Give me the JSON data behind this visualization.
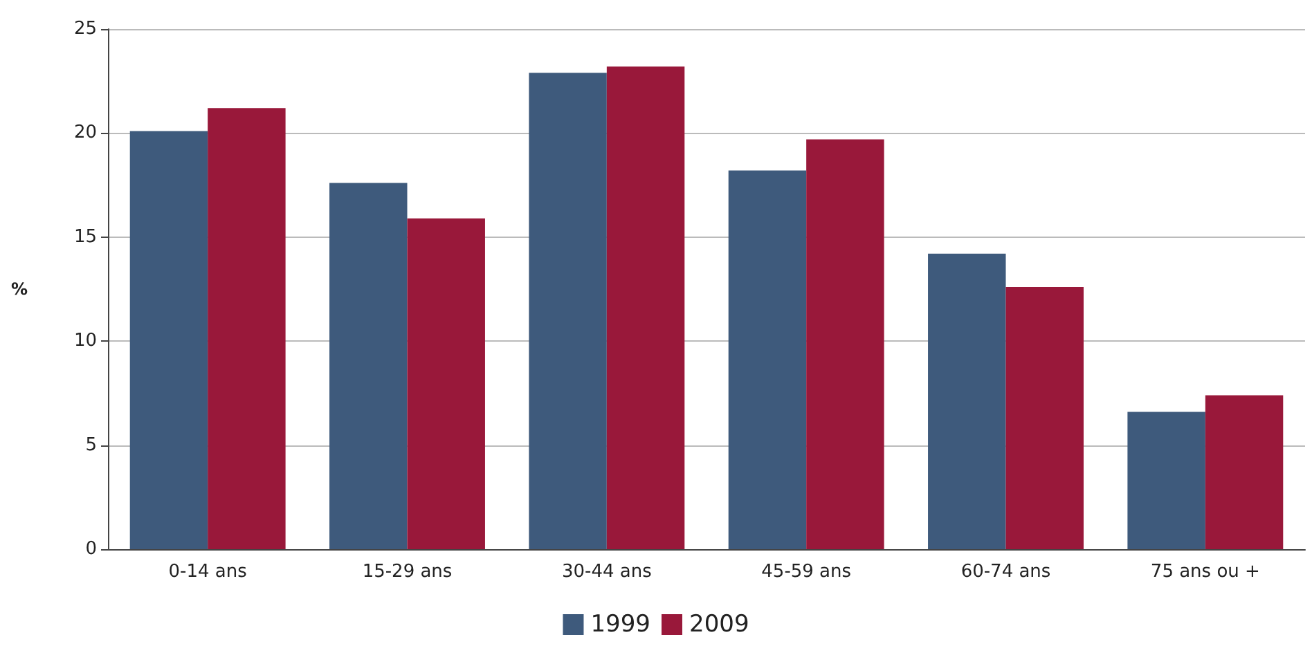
{
  "chart_data": {
    "type": "bar",
    "ylabel": "%",
    "categories": [
      "0-14 ans",
      "15-29 ans",
      "30-44 ans",
      "45-59 ans",
      "60-74 ans",
      "75 ans ou +"
    ],
    "series": [
      {
        "name": "1999",
        "color": "#3e5a7c",
        "values": [
          20.1,
          17.6,
          22.9,
          18.2,
          14.2,
          6.6
        ]
      },
      {
        "name": "2009",
        "color": "#99183a",
        "values": [
          21.2,
          15.9,
          23.2,
          19.7,
          12.6,
          7.4
        ]
      }
    ],
    "ylim": [
      0,
      25
    ],
    "yticks": [
      0,
      5,
      10,
      15,
      20,
      25
    ],
    "grid": "y",
    "legend": "bottom"
  }
}
